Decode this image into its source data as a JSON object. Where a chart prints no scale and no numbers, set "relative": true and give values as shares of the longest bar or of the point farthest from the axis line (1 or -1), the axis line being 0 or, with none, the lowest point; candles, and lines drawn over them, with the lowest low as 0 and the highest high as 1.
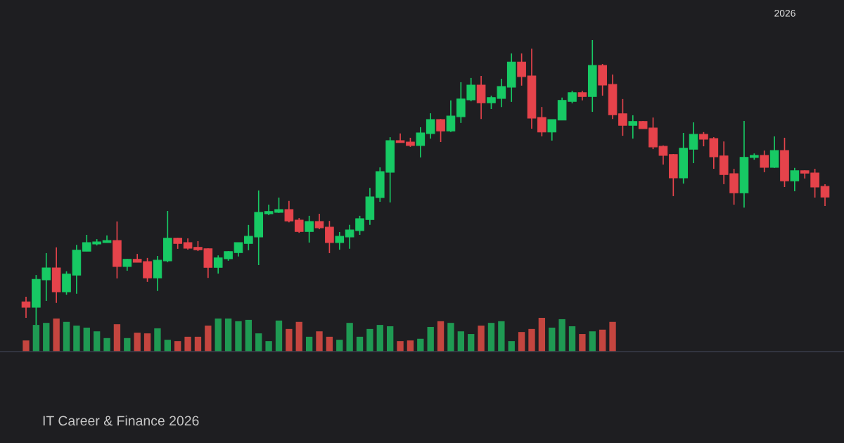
{
  "chart_data": [
    {
      "type": "candlestick",
      "relative": true,
      "categories": [
        null,
        null,
        null,
        null,
        null,
        null,
        null,
        null,
        null,
        null,
        null,
        null,
        null,
        null,
        null,
        null,
        null,
        null,
        null,
        null,
        null,
        null,
        null,
        null,
        null,
        null,
        null,
        null,
        null,
        null,
        null,
        null,
        null,
        null,
        null,
        null,
        null,
        null,
        null,
        null,
        null,
        null,
        null,
        null,
        null,
        null,
        null,
        null,
        null,
        null,
        null,
        null,
        null,
        null,
        null,
        null,
        null,
        null,
        null,
        null,
        null,
        null,
        null,
        null,
        null,
        null,
        null,
        null,
        null,
        null,
        null,
        null,
        null,
        null,
        null,
        null,
        null,
        null,
        null,
        null
      ],
      "ohlc": [
        [
          0.081,
          0.099,
          0.025,
          0.062
        ],
        [
          0.062,
          0.175,
          0.0,
          0.16
        ],
        [
          0.158,
          0.252,
          0.084,
          0.2
        ],
        [
          0.2,
          0.272,
          0.077,
          0.116
        ],
        [
          0.116,
          0.188,
          0.106,
          0.178
        ],
        [
          0.175,
          0.281,
          0.109,
          0.262
        ],
        [
          0.259,
          0.316,
          0.259,
          0.289
        ],
        [
          0.284,
          0.301,
          0.279,
          0.291
        ],
        [
          0.289,
          0.314,
          0.289,
          0.296
        ],
        [
          0.296,
          0.363,
          0.163,
          0.205
        ],
        [
          0.205,
          0.232,
          0.19,
          0.23
        ],
        [
          0.23,
          0.249,
          0.22,
          0.22
        ],
        [
          0.222,
          0.235,
          0.151,
          0.165
        ],
        [
          0.165,
          0.242,
          0.119,
          0.227
        ],
        [
          0.225,
          0.4,
          0.22,
          0.304
        ],
        [
          0.304,
          0.306,
          0.267,
          0.286
        ],
        [
          0.289,
          0.304,
          0.264,
          0.269
        ],
        [
          0.272,
          0.294,
          0.259,
          0.264
        ],
        [
          0.267,
          0.269,
          0.165,
          0.202
        ],
        [
          0.202,
          0.244,
          0.18,
          0.235
        ],
        [
          0.232,
          0.259,
          0.225,
          0.257
        ],
        [
          0.254,
          0.289,
          0.24,
          0.289
        ],
        [
          0.286,
          0.351,
          0.262,
          0.311
        ],
        [
          0.309,
          0.472,
          0.21,
          0.395
        ],
        [
          0.39,
          0.422,
          0.385,
          0.398
        ],
        [
          0.395,
          0.447,
          0.393,
          0.405
        ],
        [
          0.405,
          0.435,
          0.36,
          0.365
        ],
        [
          0.368,
          0.375,
          0.323,
          0.328
        ],
        [
          0.328,
          0.383,
          0.289,
          0.363
        ],
        [
          0.363,
          0.39,
          0.336,
          0.341
        ],
        [
          0.343,
          0.365,
          0.252,
          0.289
        ],
        [
          0.289,
          0.326,
          0.264,
          0.311
        ],
        [
          0.309,
          0.351,
          0.267,
          0.333
        ],
        [
          0.331,
          0.383,
          0.316,
          0.373
        ],
        [
          0.37,
          0.481,
          0.351,
          0.449
        ],
        [
          0.447,
          0.553,
          0.432,
          0.538
        ],
        [
          0.536,
          0.659,
          0.43,
          0.647
        ],
        [
          0.647,
          0.672,
          0.64,
          0.64
        ],
        [
          0.642,
          0.657,
          0.625,
          0.63
        ],
        [
          0.63,
          0.694,
          0.588,
          0.674
        ],
        [
          0.672,
          0.743,
          0.654,
          0.721
        ],
        [
          0.721,
          0.723,
          0.642,
          0.681
        ],
        [
          0.681,
          0.788,
          0.677,
          0.733
        ],
        [
          0.731,
          0.852,
          0.709,
          0.793
        ],
        [
          0.79,
          0.867,
          0.785,
          0.842
        ],
        [
          0.842,
          0.874,
          0.723,
          0.78
        ],
        [
          0.78,
          0.805,
          0.758,
          0.798
        ],
        [
          0.795,
          0.864,
          0.765,
          0.837
        ],
        [
          0.835,
          0.953,
          0.783,
          0.923
        ],
        [
          0.923,
          0.953,
          0.84,
          0.872
        ],
        [
          0.874,
          0.97,
          0.689,
          0.726
        ],
        [
          0.728,
          0.765,
          0.662,
          0.677
        ],
        [
          0.677,
          0.721,
          0.647,
          0.721
        ],
        [
          0.719,
          0.798,
          0.719,
          0.788
        ],
        [
          0.785,
          0.822,
          0.778,
          0.815
        ],
        [
          0.815,
          0.822,
          0.788,
          0.802
        ],
        [
          0.802,
          1.0,
          0.748,
          0.911
        ],
        [
          0.911,
          0.916,
          0.805,
          0.842
        ],
        [
          0.844,
          0.879,
          0.723,
          0.738
        ],
        [
          0.741,
          0.793,
          0.664,
          0.701
        ],
        [
          0.701,
          0.736,
          0.654,
          0.714
        ],
        [
          0.714,
          0.716,
          0.689,
          0.689
        ],
        [
          0.691,
          0.728,
          0.617,
          0.625
        ],
        [
          0.627,
          0.63,
          0.563,
          0.595
        ],
        [
          0.598,
          0.6,
          0.452,
          0.516
        ],
        [
          0.516,
          0.674,
          0.496,
          0.62
        ],
        [
          0.617,
          0.711,
          0.568,
          0.669
        ],
        [
          0.669,
          0.677,
          0.627,
          0.652
        ],
        [
          0.654,
          0.659,
          0.548,
          0.59
        ],
        [
          0.593,
          0.644,
          0.494,
          0.528
        ],
        [
          0.531,
          0.548,
          0.422,
          0.464
        ],
        [
          0.464,
          0.716,
          0.412,
          0.588
        ],
        [
          0.588,
          0.602,
          0.58,
          0.595
        ],
        [
          0.595,
          0.612,
          0.536,
          0.553
        ],
        [
          0.553,
          0.662,
          0.551,
          0.612
        ],
        [
          0.612,
          0.657,
          0.484,
          0.506
        ],
        [
          0.506,
          0.551,
          0.469,
          0.541
        ],
        [
          0.541,
          0.543,
          0.514,
          0.533
        ],
        [
          0.533,
          0.548,
          0.447,
          0.484
        ],
        [
          0.486,
          0.494,
          0.417,
          0.449
        ]
      ],
      "colors": [
        "#e5434b",
        "#17c964",
        "#17c964",
        "#e5434b",
        "#17c964",
        "#17c964",
        "#17c964",
        "#17c964",
        "#17c964",
        "#e5434b",
        "#17c964",
        "#e5434b",
        "#e5434b",
        "#17c964",
        "#17c964",
        "#e5434b",
        "#e5434b",
        "#e5434b",
        "#e5434b",
        "#17c964",
        "#17c964",
        "#17c964",
        "#17c964",
        "#17c964",
        "#17c964",
        "#17c964",
        "#e5434b",
        "#e5434b",
        "#17c964",
        "#e5434b",
        "#e5434b",
        "#17c964",
        "#17c964",
        "#17c964",
        "#17c964",
        "#17c964",
        "#17c964",
        "#e5434b",
        "#e5434b",
        "#17c964",
        "#17c964",
        "#e5434b",
        "#17c964",
        "#17c964",
        "#17c964",
        "#e5434b",
        "#17c964",
        "#17c964",
        "#17c964",
        "#e5434b",
        "#e5434b",
        "#e5434b",
        "#17c964",
        "#17c964",
        "#17c964",
        "#e5434b",
        "#17c964",
        "#e5434b",
        "#e5434b",
        "#e5434b",
        "#17c964",
        "#e5434b",
        "#e5434b",
        "#e5434b",
        "#e5434b",
        "#17c964",
        "#17c964",
        "#e5434b",
        "#e5434b",
        "#e5434b",
        "#e5434b",
        "#17c964",
        "#17c964",
        "#e5434b",
        "#17c964",
        "#e5434b",
        "#17c964",
        "#e5434b",
        "#e5434b",
        "#e5434b"
      ],
      "annotations": [
        "2026",
        "IT Career & Finance 2026"
      ]
    },
    {
      "type": "bar",
      "relative": true,
      "categories": [
        null,
        null,
        null,
        null,
        null,
        null,
        null,
        null,
        null,
        null,
        null,
        null,
        null,
        null,
        null,
        null,
        null,
        null,
        null,
        null,
        null,
        null,
        null,
        null,
        null,
        null,
        null,
        null,
        null,
        null,
        null,
        null,
        null,
        null,
        null,
        null,
        null,
        null,
        null,
        null,
        null,
        null,
        null,
        null,
        null,
        null,
        null,
        null,
        null,
        null,
        null,
        null,
        null,
        null,
        null,
        null,
        null,
        null,
        null
      ],
      "values": [
        0.33,
        0.79,
        0.85,
        0.98,
        0.88,
        0.77,
        0.71,
        0.6,
        0.4,
        0.81,
        0.4,
        0.56,
        0.54,
        0.69,
        0.35,
        0.31,
        0.44,
        0.44,
        0.77,
        0.98,
        0.98,
        0.9,
        0.94,
        0.54,
        0.31,
        0.92,
        0.67,
        0.88,
        0.44,
        0.6,
        0.44,
        0.35,
        0.85,
        0.44,
        0.67,
        0.79,
        0.75,
        0.31,
        0.33,
        0.38,
        0.73,
        0.9,
        0.85,
        0.6,
        0.52,
        0.77,
        0.85,
        0.9,
        0.31,
        0.58,
        0.67,
        1.0,
        0.71,
        0.96,
        0.75,
        0.52,
        0.6,
        0.65,
        0.88
      ],
      "colors": [
        "#c4453f",
        "#1f9a53",
        "#1f9a53",
        "#c4453f",
        "#1f9a53",
        "#1f9a53",
        "#1f9a53",
        "#1f9a53",
        "#1f9a53",
        "#c4453f",
        "#1f9a53",
        "#c4453f",
        "#c4453f",
        "#1f9a53",
        "#1f9a53",
        "#c4453f",
        "#c4453f",
        "#c4453f",
        "#c4453f",
        "#1f9a53",
        "#1f9a53",
        "#1f9a53",
        "#1f9a53",
        "#1f9a53",
        "#1f9a53",
        "#1f9a53",
        "#c4453f",
        "#c4453f",
        "#1f9a53",
        "#c4453f",
        "#c4453f",
        "#1f9a53",
        "#1f9a53",
        "#1f9a53",
        "#1f9a53",
        "#1f9a53",
        "#1f9a53",
        "#c4453f",
        "#c4453f",
        "#1f9a53",
        "#1f9a53",
        "#c4453f",
        "#1f9a53",
        "#1f9a53",
        "#1f9a53",
        "#c4453f",
        "#1f9a53",
        "#1f9a53",
        "#1f9a53",
        "#c4453f",
        "#c4453f",
        "#c4453f",
        "#1f9a53",
        "#1f9a53",
        "#1f9a53",
        "#c4453f",
        "#1f9a53",
        "#c4453f",
        "#c4453f"
      ]
    }
  ]
}
